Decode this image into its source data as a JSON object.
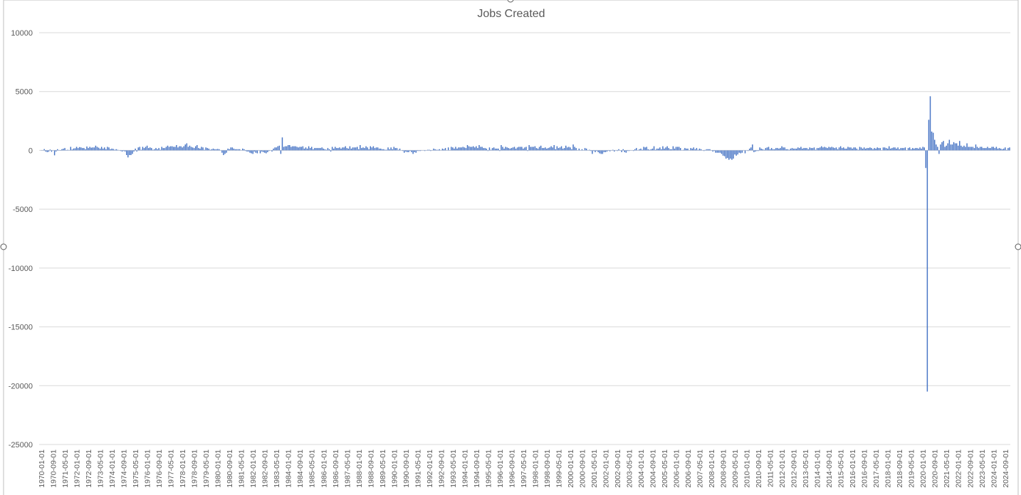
{
  "chart_data": {
    "type": "bar",
    "title": "Jobs Created",
    "color": "#4472c4",
    "grid": true,
    "ylim": [
      -25000,
      10000
    ],
    "yticks": [
      -25000,
      -20000,
      -15000,
      -10000,
      -5000,
      0,
      5000,
      10000
    ],
    "categories": [
      "1970-01-01",
      null,
      null,
      null,
      null,
      null,
      null,
      null,
      "1970-09-01",
      null,
      null,
      null,
      null,
      null,
      null,
      null,
      "1971-05-01",
      null,
      null,
      null,
      null,
      null,
      null,
      null,
      "1972-01-01",
      null,
      null,
      null,
      null,
      null,
      null,
      null,
      "1972-09-01",
      null,
      null,
      null,
      null,
      null,
      null,
      null,
      "1973-05-01",
      null,
      null,
      null,
      null,
      null,
      null,
      null,
      "1974-01-01",
      null,
      null,
      null,
      null,
      null,
      null,
      null,
      "1974-09-01",
      null,
      null,
      null,
      null,
      null,
      null,
      null,
      "1975-05-01",
      null,
      null,
      null,
      null,
      null,
      null,
      null,
      "1976-01-01",
      null,
      null,
      null,
      null,
      null,
      null,
      null,
      "1976-09-01",
      null,
      null,
      null,
      null,
      null,
      null,
      null,
      "1977-05-01",
      null,
      null,
      null,
      null,
      null,
      null,
      null,
      "1978-01-01",
      null,
      null,
      null,
      null,
      null,
      null,
      null,
      "1978-09-01",
      null,
      null,
      null,
      null,
      null,
      null,
      null,
      "1979-05-01",
      null,
      null,
      null,
      null,
      null,
      null,
      null,
      "1980-01-01",
      null,
      null,
      null,
      null,
      null,
      null,
      null,
      "1980-09-01",
      null,
      null,
      null,
      null,
      null,
      null,
      null,
      "1981-05-01",
      null,
      null,
      null,
      null,
      null,
      null,
      null,
      "1982-01-01",
      null,
      null,
      null,
      null,
      null,
      null,
      null,
      "1982-09-01",
      null,
      null,
      null,
      null,
      null,
      null,
      null,
      "1983-05-01",
      null,
      null,
      null,
      null,
      null,
      null,
      null,
      "1984-01-01",
      null,
      null,
      null,
      null,
      null,
      null,
      null,
      "1984-09-01",
      null,
      null,
      null,
      null,
      null,
      null,
      null,
      "1985-05-01",
      null,
      null,
      null,
      null,
      null,
      null,
      null,
      "1986-01-01",
      null,
      null,
      null,
      null,
      null,
      null,
      null,
      "1986-09-01",
      null,
      null,
      null,
      null,
      null,
      null,
      null,
      "1987-05-01",
      null,
      null,
      null,
      null,
      null,
      null,
      null,
      "1988-01-01",
      null,
      null,
      null,
      null,
      null,
      null,
      null,
      "1988-09-01",
      null,
      null,
      null,
      null,
      null,
      null,
      null,
      "1989-05-01",
      null,
      null,
      null,
      null,
      null,
      null,
      null,
      "1990-01-01",
      null,
      null,
      null,
      null,
      null,
      null,
      null,
      "1990-09-01",
      null,
      null,
      null,
      null,
      null,
      null,
      null,
      "1991-05-01",
      null,
      null,
      null,
      null,
      null,
      null,
      null,
      "1992-01-01",
      null,
      null,
      null,
      null,
      null,
      null,
      null,
      "1992-09-01",
      null,
      null,
      null,
      null,
      null,
      null,
      null,
      "1993-05-01",
      null,
      null,
      null,
      null,
      null,
      null,
      null,
      "1994-01-01",
      null,
      null,
      null,
      null,
      null,
      null,
      null,
      "1994-09-01",
      null,
      null,
      null,
      null,
      null,
      null,
      null,
      "1995-05-01",
      null,
      null,
      null,
      null,
      null,
      null,
      null,
      "1996-01-01",
      null,
      null,
      null,
      null,
      null,
      null,
      null,
      "1996-09-01",
      null,
      null,
      null,
      null,
      null,
      null,
      null,
      "1997-05-01",
      null,
      null,
      null,
      null,
      null,
      null,
      null,
      "1998-01-01",
      null,
      null,
      null,
      null,
      null,
      null,
      null,
      "1998-09-01",
      null,
      null,
      null,
      null,
      null,
      null,
      null,
      "1999-05-01",
      null,
      null,
      null,
      null,
      null,
      null,
      null,
      "2000-01-01",
      null,
      null,
      null,
      null,
      null,
      null,
      null,
      "2000-09-01",
      null,
      null,
      null,
      null,
      null,
      null,
      null,
      "2001-05-01",
      null,
      null,
      null,
      null,
      null,
      null,
      null,
      "2002-01-01",
      null,
      null,
      null,
      null,
      null,
      null,
      null,
      "2002-09-01",
      null,
      null,
      null,
      null,
      null,
      null,
      null,
      "2003-05-01",
      null,
      null,
      null,
      null,
      null,
      null,
      null,
      "2004-01-01",
      null,
      null,
      null,
      null,
      null,
      null,
      null,
      "2004-09-01",
      null,
      null,
      null,
      null,
      null,
      null,
      null,
      "2005-05-01",
      null,
      null,
      null,
      null,
      null,
      null,
      null,
      "2006-01-01",
      null,
      null,
      null,
      null,
      null,
      null,
      null,
      "2006-09-01",
      null,
      null,
      null,
      null,
      null,
      null,
      null,
      "2007-05-01",
      null,
      null,
      null,
      null,
      null,
      null,
      null,
      "2008-01-01",
      null,
      null,
      null,
      null,
      null,
      null,
      null,
      "2008-09-01",
      null,
      null,
      null,
      null,
      null,
      null,
      null,
      "2009-05-01",
      null,
      null,
      null,
      null,
      null,
      null,
      null,
      "2010-01-01",
      null,
      null,
      null,
      null,
      null,
      null,
      null,
      "2010-09-01",
      null,
      null,
      null,
      null,
      null,
      null,
      null,
      "2011-05-01",
      null,
      null,
      null,
      null,
      null,
      null,
      null,
      "2012-01-01",
      null,
      null,
      null,
      null,
      null,
      null,
      null,
      "2012-09-01",
      null,
      null,
      null,
      null,
      null,
      null,
      null,
      "2013-05-01",
      null,
      null,
      null,
      null,
      null,
      null,
      null,
      "2014-01-01",
      null,
      null,
      null,
      null,
      null,
      null,
      null,
      "2014-09-01",
      null,
      null,
      null,
      null,
      null,
      null,
      null,
      "2015-05-01",
      null,
      null,
      null,
      null,
      null,
      null,
      null,
      "2016-01-01",
      null,
      null,
      null,
      null,
      null,
      null,
      null,
      "2016-09-01",
      null,
      null,
      null,
      null,
      null,
      null,
      null,
      "2017-05-01",
      null,
      null,
      null,
      null,
      null,
      null,
      null,
      "2018-01-01",
      null,
      null,
      null,
      null,
      null,
      null,
      null,
      "2018-09-01",
      null,
      null,
      null,
      null,
      null,
      null,
      null,
      "2019-05-01",
      null,
      null,
      null,
      null,
      null,
      null,
      null,
      "2020-01-01",
      null,
      null,
      null,
      null,
      null,
      null,
      null,
      "2020-09-01",
      null,
      null,
      null,
      null,
      null,
      null,
      null,
      "2021-05-01",
      null,
      null,
      null,
      null,
      null,
      null,
      null,
      "2022-01-01",
      null,
      null,
      null,
      null,
      null,
      null,
      null,
      "2022-09-01",
      null,
      null,
      null,
      null,
      null,
      null,
      null,
      "2023-05-01",
      null,
      null,
      null,
      null,
      null,
      null,
      null,
      "2024-01-01",
      null,
      null,
      null,
      null,
      null,
      null,
      null,
      "2024-09-01",
      null,
      null,
      null
    ],
    "values": [
      15,
      -5,
      110,
      -100,
      -150,
      -120,
      70,
      -120,
      -20,
      -420,
      -100,
      100,
      30,
      -30,
      100,
      140,
      200,
      30,
      50,
      -20,
      300,
      70,
      160,
      180,
      300,
      200,
      280,
      250,
      200,
      200,
      100,
      330,
      200,
      300,
      230,
      250,
      250,
      400,
      300,
      230,
      150,
      300,
      150,
      250,
      100,
      300,
      250,
      100,
      150,
      120,
      50,
      100,
      50,
      0,
      -50,
      -100,
      -50,
      -100,
      -400,
      -600,
      -400,
      -400,
      -300,
      -100,
      150,
      -100,
      250,
      300,
      50,
      300,
      200,
      300,
      400,
      200,
      250,
      200,
      50,
      100,
      200,
      100,
      200,
      50,
      300,
      200,
      200,
      300,
      400,
      300,
      350,
      350,
      300,
      300,
      450,
      250,
      350,
      350,
      250,
      350,
      500,
      600,
      300,
      400,
      300,
      250,
      200,
      350,
      450,
      200,
      150,
      300,
      250,
      50,
      250,
      200,
      150,
      50,
      100,
      150,
      100,
      100,
      120,
      100,
      0,
      -200,
      -400,
      -300,
      -200,
      150,
      100,
      250,
      250,
      150,
      100,
      100,
      100,
      100,
      0,
      150,
      100,
      -50,
      -100,
      -100,
      -200,
      -250,
      -300,
      -100,
      -200,
      -250,
      0,
      -250,
      -100,
      -150,
      -200,
      -250,
      -150,
      -50,
      0,
      -100,
      150,
      250,
      250,
      350,
      400,
      -300,
      1100,
      300,
      350,
      350,
      450,
      450,
      300,
      350,
      350,
      350,
      300,
      250,
      300,
      300,
      350,
      150,
      250,
      150,
      350,
      200,
      300,
      100,
      200,
      200,
      200,
      200,
      200,
      250,
      150,
      100,
      50,
      200,
      100,
      -100,
      300,
      150,
      300,
      200,
      200,
      250,
      150,
      250,
      250,
      350,
      200,
      150,
      350,
      150,
      250,
      250,
      250,
      300,
      100,
      450,
      200,
      250,
      200,
      350,
      250,
      100,
      350,
      250,
      350,
      200,
      250,
      250,
      150,
      150,
      100,
      100,
      50,
      50,
      250,
      100,
      250,
      100,
      300,
      200,
      200,
      50,
      150,
      0,
      -50,
      -200,
      -100,
      -150,
      -150,
      -50,
      -150,
      -300,
      -150,
      -200,
      -50,
      -50,
      -50,
      0,
      0,
      -50,
      0,
      50,
      50,
      -50,
      0,
      150,
      100,
      50,
      50,
      100,
      0,
      150,
      100,
      200,
      0,
      250,
      0,
      300,
      250,
      150,
      300,
      150,
      250,
      250,
      250,
      300,
      250,
      200,
      450,
      350,
      300,
      300,
      350,
      250,
      350,
      200,
      450,
      300,
      300,
      200,
      200,
      150,
      -50,
      250,
      50,
      200,
      250,
      150,
      150,
      150,
      -50,
      450,
      300,
      150,
      300,
      250,
      200,
      150,
      200,
      250,
      300,
      150,
      250,
      300,
      300,
      300,
      150,
      250,
      300,
      -50,
      450,
      300,
      300,
      300,
      350,
      200,
      150,
      300,
      400,
      200,
      200,
      250,
      150,
      200,
      250,
      350,
      250,
      450,
      100,
      350,
      200,
      250,
      350,
      150,
      200,
      400,
      250,
      300,
      250,
      100,
      500,
      300,
      200,
      0,
      150,
      0,
      100,
      0,
      200,
      150,
      0,
      50,
      -50,
      -300,
      -50,
      -150,
      -50,
      -150,
      -250,
      -300,
      -300,
      -150,
      -150,
      -100,
      -30,
      -80,
      -10,
      50,
      -100,
      0,
      -50,
      100,
      0,
      -150,
      100,
      -150,
      -200,
      -50,
      -50,
      0,
      0,
      -50,
      100,
      200,
      0,
      100,
      150,
      50,
      300,
      250,
      300,
      100,
      50,
      100,
      150,
      350,
      50,
      150,
      150,
      250,
      100,
      350,
      150,
      250,
      350,
      200,
      100,
      100,
      350,
      150,
      300,
      300,
      300,
      200,
      0,
      50,
      200,
      150,
      150,
      0,
      200,
      150,
      250,
      100,
      200,
      50,
      150,
      100,
      0,
      -50,
      50,
      100,
      100,
      100,
      0,
      -100,
      -50,
      -200,
      -200,
      -200,
      -200,
      -300,
      -450,
      -500,
      -700,
      -650,
      -800,
      -700,
      -800,
      -700,
      -350,
      -450,
      -350,
      -200,
      -250,
      -200,
      0,
      -250,
      0,
      -50,
      150,
      250,
      500,
      -150,
      -100,
      -50,
      -50,
      250,
      150,
      100,
      50,
      200,
      250,
      300,
      100,
      200,
      100,
      100,
      200,
      200,
      150,
      200,
      350,
      250,
      250,
      100,
      100,
      50,
      150,
      200,
      150,
      150,
      150,
      250,
      200,
      300,
      150,
      200,
      200,
      200,
      100,
      250,
      200,
      200,
      250,
      50,
      200,
      200,
      250,
      350,
      250,
      300,
      250,
      200,
      300,
      250,
      300,
      250,
      200,
      250,
      100,
      250,
      350,
      200,
      250,
      150,
      150,
      300,
      250,
      250,
      150,
      250,
      250,
      150,
      50,
      300,
      250,
      150,
      250,
      150,
      200,
      200,
      250,
      200,
      100,
      200,
      150,
      250,
      200,
      200,
      0,
      250,
      250,
      200,
      150,
      350,
      150,
      200,
      250,
      250,
      150,
      250,
      100,
      200,
      200,
      200,
      250,
      0,
      200,
      250,
      100,
      200,
      150,
      200,
      200,
      150,
      250,
      150,
      300,
      250,
      -1500,
      -20500,
      2600,
      4600,
      1600,
      1500,
      900,
      500,
      300,
      -300,
      500,
      700,
      800,
      300,
      400,
      600,
      900,
      500,
      500,
      700,
      600,
      600,
      400,
      800,
      400,
      300,
      400,
      300,
      600,
      300,
      300,
      300,
      300,
      200,
      500,
      300,
      200,
      300,
      300,
      200,
      200,
      200,
      300,
      200,
      200,
      300,
      300,
      200,
      300,
      150,
      200,
      150,
      100,
      150,
      250,
      40,
      200,
      250
    ]
  }
}
